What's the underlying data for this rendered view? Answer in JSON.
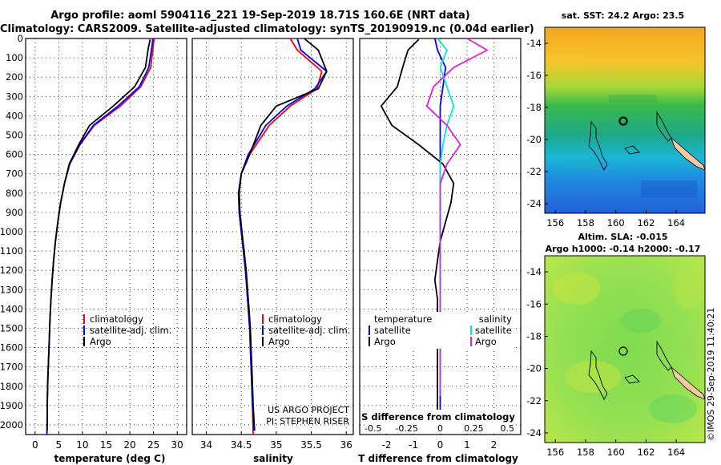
{
  "header": {
    "title_line1": "Argo profile: aoml 5904116_221 19-Sep-2019 18.71S 160.6E (NRT data)",
    "title_line2": "Climatology: CARS2009. Satellite-adjusted climatology: synTS_20190919.nc (0.04d earlier)"
  },
  "colors": {
    "climatology": "#ff0000",
    "satellite": "#0000ff",
    "argo": "#000000",
    "sat_salinity": "#00e5e5",
    "argo_salinity": "#e020e0"
  },
  "depth_axis": {
    "ticks": [
      "0",
      "100",
      "200",
      "300",
      "400",
      "500",
      "600",
      "700",
      "800",
      "900",
      "1000",
      "1100",
      "1200",
      "1300",
      "1400",
      "1500",
      "1600",
      "1700",
      "1800",
      "1900",
      "2000"
    ]
  },
  "panels": {
    "temperature": {
      "xlabel": "temperature (deg C)",
      "xticks": [
        "0",
        "5",
        "10",
        "15",
        "20",
        "25",
        "30"
      ],
      "legend": [
        "climatology",
        "satellite-adj. clim.",
        "Argo"
      ]
    },
    "salinity": {
      "xlabel": "salinity",
      "xticks": [
        "34",
        "34.5",
        "35",
        "35.5",
        "36"
      ],
      "legend": [
        "climatology",
        "satellite-adj. clim.",
        "Argo"
      ],
      "credit1": "US ARGO PROJECT",
      "credit2": "PI: STEPHEN RISER"
    },
    "difference": {
      "xlabel": "T difference from climatology",
      "xticks": [
        "-2",
        "-1",
        "0",
        "1",
        "2"
      ],
      "s_label": "S difference from climatology",
      "s_ticks": [
        "-0.5",
        "-0.25",
        "0",
        "0.25",
        "0.5"
      ],
      "legend_t_title": "temperature",
      "legend_t": [
        "satellite",
        "Argo"
      ],
      "legend_s_title": "salinity",
      "legend_s": [
        "satellite",
        "Argo"
      ]
    }
  },
  "maps": {
    "sst_title": "sat. SST: 24.2 Argo: 23.5",
    "sla_title1": "Altim. SLA: -0.015",
    "sla_title2": "Argo h1000: -0.14 h2000: -0.17",
    "lat_ticks": [
      "-14",
      "-16",
      "-18",
      "-20",
      "-22",
      "-24"
    ],
    "lon_ticks": [
      "156",
      "158",
      "160",
      "162",
      "164"
    ],
    "footer": "©IMOS 29-Sep-2019 11:40:21"
  },
  "chart_data": [
    {
      "type": "line",
      "title": "",
      "xlabel": "temperature (deg C)",
      "ylabel": "depth",
      "xlim": [
        -2,
        32
      ],
      "ylim": [
        2050,
        0
      ],
      "series": [
        {
          "name": "climatology",
          "x": [
            25.1,
            24.9,
            24.4,
            22.3,
            18.0,
            12.5,
            9.5,
            7.3,
            6.2,
            5.4,
            4.8,
            4.3,
            3.9,
            3.6,
            3.35,
            3.15,
            3.0,
            2.85,
            2.7,
            2.6,
            2.5
          ],
          "y": [
            0,
            50,
            150,
            250,
            350,
            450,
            550,
            650,
            750,
            850,
            950,
            1050,
            1150,
            1250,
            1350,
            1450,
            1550,
            1650,
            1750,
            1850,
            2050
          ]
        },
        {
          "name": "satellite-adj. clim.",
          "x": [
            24.9,
            24.6,
            24.0,
            22.0,
            17.5,
            12.3,
            9.4,
            7.3,
            6.2,
            5.4,
            4.8,
            4.3,
            3.9,
            3.6,
            3.35,
            3.15,
            3.0,
            2.85,
            2.7,
            2.6,
            2.5
          ],
          "y": [
            0,
            50,
            150,
            250,
            350,
            450,
            550,
            650,
            750,
            850,
            950,
            1050,
            1150,
            1250,
            1350,
            1450,
            1550,
            1650,
            1750,
            1850,
            2050
          ]
        },
        {
          "name": "Argo",
          "x": [
            24.3,
            23.9,
            23.3,
            21.0,
            16.5,
            11.5,
            9.2,
            7.2,
            6.2,
            5.4,
            4.8,
            4.3,
            3.9,
            3.6,
            3.35,
            3.15,
            3.0,
            2.85,
            2.7,
            2.6,
            2.55
          ],
          "y": [
            5,
            50,
            150,
            250,
            350,
            450,
            550,
            650,
            750,
            850,
            950,
            1050,
            1150,
            1250,
            1350,
            1450,
            1550,
            1650,
            1750,
            1850,
            2030
          ]
        }
      ]
    },
    {
      "type": "line",
      "title": "",
      "xlabel": "salinity",
      "ylabel": "depth",
      "xlim": [
        33.8,
        36.1
      ],
      "ylim": [
        2050,
        0
      ],
      "series": [
        {
          "name": "climatology",
          "x": [
            35.2,
            35.3,
            35.65,
            35.58,
            35.2,
            34.9,
            34.62,
            34.5,
            34.46,
            34.47,
            34.5,
            34.53,
            34.56,
            34.58,
            34.6,
            34.62,
            34.63,
            34.64,
            34.65,
            34.66,
            34.67
          ],
          "y": [
            0,
            60,
            170,
            260,
            350,
            450,
            600,
            700,
            800,
            900,
            1000,
            1100,
            1200,
            1300,
            1400,
            1500,
            1600,
            1700,
            1800,
            1900,
            2050
          ]
        },
        {
          "name": "satellite-adj. clim.",
          "x": [
            35.3,
            35.35,
            35.72,
            35.55,
            35.15,
            34.85,
            34.6,
            34.5,
            34.46,
            34.47,
            34.5,
            34.53,
            34.56,
            34.58,
            34.6,
            34.62,
            34.63,
            34.64,
            34.65,
            34.66,
            34.68
          ],
          "y": [
            0,
            60,
            170,
            260,
            350,
            450,
            600,
            700,
            800,
            900,
            1000,
            1100,
            1200,
            1300,
            1400,
            1500,
            1600,
            1700,
            1800,
            1900,
            2030
          ]
        },
        {
          "name": "Argo",
          "x": [
            35.4,
            35.6,
            35.72,
            35.6,
            35.0,
            34.78,
            34.62,
            34.5,
            34.47,
            34.48,
            34.51,
            34.54,
            34.57,
            34.59,
            34.61,
            34.63,
            34.64,
            34.65,
            34.66,
            34.67,
            34.69
          ],
          "y": [
            0,
            60,
            170,
            260,
            350,
            450,
            600,
            700,
            800,
            900,
            1000,
            1100,
            1200,
            1300,
            1400,
            1500,
            1600,
            1700,
            1800,
            1900,
            2030
          ]
        }
      ]
    },
    {
      "type": "line",
      "title": "",
      "xlabel": "T difference from climatology",
      "ylabel": "depth",
      "xlim": [
        -3,
        3
      ],
      "ylim": [
        2050,
        0
      ],
      "series": [
        {
          "name": "T satellite",
          "axis": "T",
          "x": [
            -0.2,
            -0.1,
            0.2,
            0.1,
            0.0,
            0.0,
            0.0,
            0.0,
            0.0,
            0.0,
            0.0,
            0.0,
            0.0,
            0.0,
            0.0,
            0.0,
            0.0,
            0.0,
            0.0,
            0.0,
            0.0
          ],
          "y": [
            0,
            60,
            150,
            250,
            350,
            450,
            550,
            650,
            750,
            850,
            950,
            1050,
            1150,
            1250,
            1350,
            1450,
            1550,
            1650,
            1750,
            1850,
            2000
          ]
        },
        {
          "name": "T Argo",
          "axis": "T",
          "x": [
            -0.8,
            -1.2,
            -1.4,
            -1.6,
            -2.2,
            -1.8,
            -0.8,
            0.1,
            0.5,
            0.4,
            0.2,
            0.0,
            -0.1,
            -0.2,
            -0.1,
            -0.1,
            -0.1,
            -0.1,
            -0.1,
            -0.1,
            -0.1
          ],
          "y": [
            5,
            60,
            150,
            250,
            350,
            450,
            550,
            650,
            750,
            850,
            950,
            1050,
            1150,
            1250,
            1350,
            1450,
            1550,
            1650,
            1750,
            1850,
            2000
          ]
        },
        {
          "name": "S satellite",
          "axis": "S",
          "x": [
            -0.02,
            0.05,
            0.0,
            0.05,
            0.1,
            0.05,
            0.02,
            0.0,
            0.0,
            0.0,
            0.0,
            0.0,
            0.0,
            0.0,
            0.0,
            0.0,
            0.0,
            0.0,
            0.0,
            0.0
          ],
          "y": [
            0,
            60,
            150,
            250,
            350,
            450,
            550,
            650,
            750,
            850,
            950,
            1050,
            1150,
            1250,
            1350,
            1450,
            1550,
            1650,
            1750,
            1850
          ]
        },
        {
          "name": "S Argo",
          "axis": "S",
          "x": [
            0.2,
            0.35,
            0.1,
            -0.05,
            -0.1,
            0.05,
            0.15,
            0.05,
            0.0,
            0.0,
            0.0,
            0.0,
            0.0,
            0.0,
            0.0,
            0.0,
            0.0,
            0.0,
            0.0,
            0.0
          ],
          "y": [
            0,
            60,
            150,
            250,
            350,
            450,
            550,
            650,
            750,
            850,
            950,
            1050,
            1150,
            1250,
            1350,
            1450,
            1550,
            1650,
            1750,
            1850
          ]
        }
      ]
    }
  ]
}
